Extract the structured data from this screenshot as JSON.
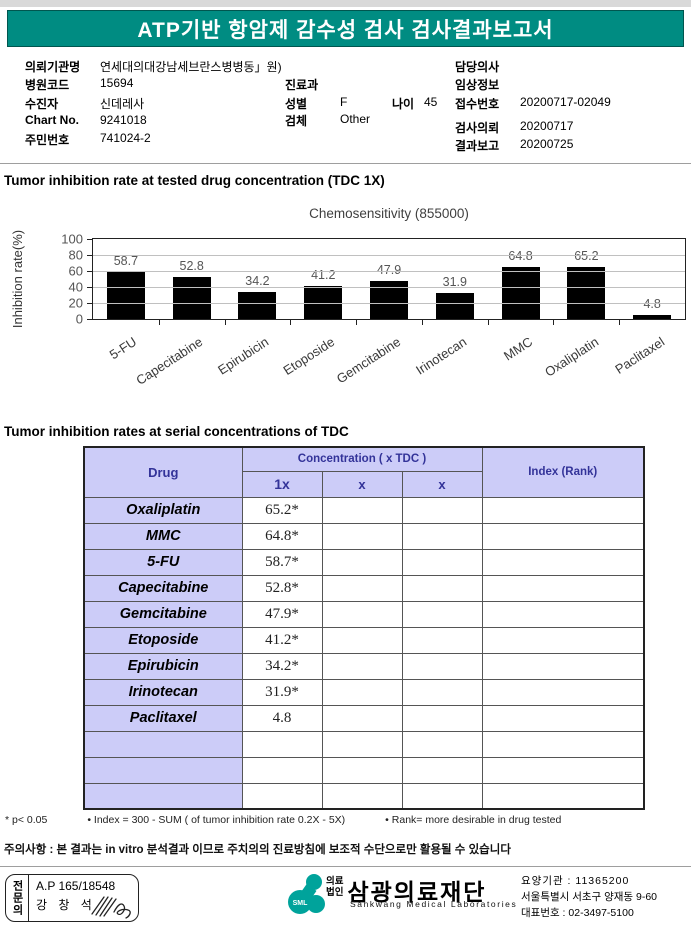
{
  "header": {
    "title": "ATP기반 항암제 감수성 검사 검사결과보고서"
  },
  "patient": {
    "org_label": "의뢰기관명",
    "org_value": "연세대의대강남세브란스병병동」원)",
    "hospital_code_label": "병원코드",
    "hospital_code_value": "15694",
    "patient_label": "수진자",
    "patient_value": "신데레사",
    "chart_no_label": "Chart No.",
    "chart_no_value": "9241018",
    "resident_no_label": "주민번호",
    "resident_no_value": "741024-2",
    "dept_label": "진료과",
    "dept_value": "",
    "sex_label": "성별",
    "sex_value": "F",
    "age_label": "나이",
    "age_value": "45",
    "specimen_label": "검체",
    "specimen_value": "Other",
    "doctor_label": "담당의사",
    "doctor_value": "",
    "clinical_label": "임상정보",
    "clinical_value": "",
    "receipt_label": "접수번호",
    "receipt_value": "20200717-02049",
    "request_label": "검사의뢰",
    "request_value": "20200717",
    "report_label": "결과보고",
    "report_value": "20200725"
  },
  "section1": {
    "title": "Tumor inhibition rate at tested drug concentration (TDC 1X)"
  },
  "chart_data": {
    "type": "bar",
    "title": "Chemosensitivity (855000)",
    "ylabel": "Inhibition rate(%)",
    "xlabel": "",
    "categories": [
      "5-FU",
      "Capecitabine",
      "Epirubicin",
      "Etoposide",
      "Gemcitabine",
      "Irinotecan",
      "MMC",
      "Oxaliplatin",
      "Paclitaxel"
    ],
    "values": [
      58.7,
      52.8,
      34.2,
      41.2,
      47.9,
      31.9,
      64.8,
      65.2,
      4.8
    ],
    "ylim": [
      0,
      100
    ],
    "yticks": [
      0,
      20,
      40,
      60,
      80,
      100
    ],
    "grid": true,
    "legend": false,
    "bar_color": "#000000"
  },
  "section2": {
    "title": "Tumor inhibition rates at serial concentrations of TDC"
  },
  "table": {
    "headers": {
      "drug": "Drug",
      "concentration": "Concentration ( x TDC )",
      "c1": "1x",
      "c2": "x",
      "c3": "x",
      "index": "Index (Rank)"
    },
    "rows": [
      {
        "drug": "Oxaliplatin",
        "c1": "65.2*",
        "c2": "",
        "c3": "",
        "index": ""
      },
      {
        "drug": "MMC",
        "c1": "64.8*",
        "c2": "",
        "c3": "",
        "index": ""
      },
      {
        "drug": "5-FU",
        "c1": "58.7*",
        "c2": "",
        "c3": "",
        "index": ""
      },
      {
        "drug": "Capecitabine",
        "c1": "52.8*",
        "c2": "",
        "c3": "",
        "index": ""
      },
      {
        "drug": "Gemcitabine",
        "c1": "47.9*",
        "c2": "",
        "c3": "",
        "index": ""
      },
      {
        "drug": "Etoposide",
        "c1": "41.2*",
        "c2": "",
        "c3": "",
        "index": ""
      },
      {
        "drug": "Epirubicin",
        "c1": "34.2*",
        "c2": "",
        "c3": "",
        "index": ""
      },
      {
        "drug": "Irinotecan",
        "c1": "31.9*",
        "c2": "",
        "c3": "",
        "index": ""
      },
      {
        "drug": "Paclitaxel",
        "c1": "4.8",
        "c2": "",
        "c3": "",
        "index": ""
      },
      {
        "drug": "",
        "c1": "",
        "c2": "",
        "c3": "",
        "index": ""
      },
      {
        "drug": "",
        "c1": "",
        "c2": "",
        "c3": "",
        "index": ""
      },
      {
        "drug": "",
        "c1": "",
        "c2": "",
        "c3": "",
        "index": ""
      }
    ]
  },
  "footnotes": {
    "f1": "* p< 0.05",
    "f2": "• Index = 300 - SUM ( of tumor inhibition rate 0.2X  -  5X)",
    "f3": "• Rank= more desirable in drug tested"
  },
  "notice": "주의사항 : 본 결과는 in vitro 분석결과 이므로 주치의의 진료방침에 보조적 수단으로만 활용될 수 있습니다",
  "footer": {
    "cert_title": "전문의",
    "cert_no": "A.P 165/18548",
    "cert_name": "강 창 석",
    "logo_text": "SML",
    "corp_type_1": "의료",
    "corp_type_2": "법인",
    "corp_name": "삼광의료재단",
    "corp_en": "Sankwang Medical Laboratories",
    "addr_line1": "요양기관 : 11365200",
    "addr_line2": "서울특별시 서초구 양재동 9-60",
    "addr_line3": "대표번호 : 02-3497-5100"
  },
  "colors": {
    "header_teal": "#008c82",
    "logo_teal": "#00a39b",
    "table_lavender": "#ccccf8",
    "table_header_text": "#333399",
    "bar_black": "#000000"
  }
}
